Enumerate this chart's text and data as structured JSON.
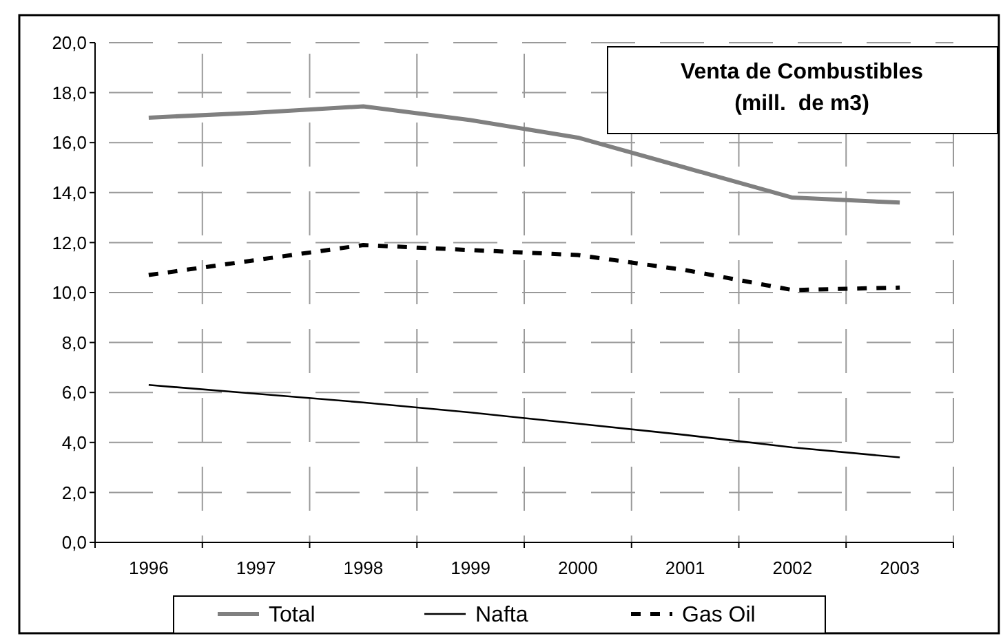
{
  "chart_data": {
    "type": "line",
    "title": "Venta de Combustibles\n(mill.  de m3)",
    "categories": [
      "1996",
      "1997",
      "1998",
      "1999",
      "2000",
      "2001",
      "2002",
      "2003"
    ],
    "series": [
      {
        "name": "Total",
        "color": "#808080",
        "line_style": "solid",
        "values": [
          17.0,
          17.2,
          17.45,
          16.9,
          16.2,
          15.0,
          13.8,
          13.6
        ]
      },
      {
        "name": "Nafta",
        "color": "#000000",
        "line_style": "solid",
        "values": [
          6.3,
          5.95,
          5.6,
          5.2,
          4.75,
          4.3,
          3.8,
          3.4
        ]
      },
      {
        "name": "Gas Oil",
        "color": "#000000",
        "line_style": "dashed",
        "values": [
          10.7,
          11.3,
          11.9,
          11.7,
          11.5,
          10.9,
          10.1,
          10.2
        ]
      }
    ],
    "ylim": [
      0,
      20
    ],
    "yticks": [
      {
        "value": 0,
        "label": "0,0"
      },
      {
        "value": 2,
        "label": "2,0"
      },
      {
        "value": 4,
        "label": "4,0"
      },
      {
        "value": 6,
        "label": "6,0"
      },
      {
        "value": 8,
        "label": "8,0"
      },
      {
        "value": 10,
        "label": "10,0"
      },
      {
        "value": 12,
        "label": "12,0"
      },
      {
        "value": 14,
        "label": "14,0"
      },
      {
        "value": 16,
        "label": "16,0"
      },
      {
        "value": 18,
        "label": "18,0"
      },
      {
        "value": 20,
        "label": "20,0"
      }
    ],
    "grid": true,
    "legend": "bottom",
    "marker": "none"
  }
}
